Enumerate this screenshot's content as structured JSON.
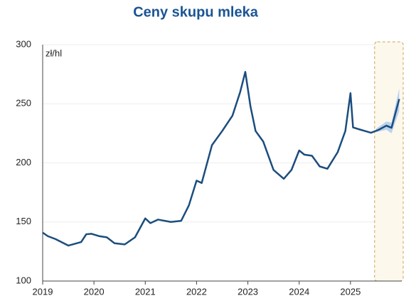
{
  "chart_data": {
    "type": "line",
    "title": "Ceny skupu mleka",
    "ylabel": "zł/hl",
    "x": [
      2019.0,
      2019.1,
      2019.25,
      2019.5,
      2019.75,
      2019.85,
      2019.95,
      2020.1,
      2020.25,
      2020.4,
      2020.6,
      2020.8,
      2021.0,
      2021.1,
      2021.25,
      2021.5,
      2021.7,
      2021.85,
      2022.0,
      2022.1,
      2022.3,
      2022.5,
      2022.7,
      2022.85,
      2022.95,
      2023.05,
      2023.15,
      2023.3,
      2023.5,
      2023.7,
      2023.85,
      2024.0,
      2024.1,
      2024.25,
      2024.4,
      2024.55,
      2024.75,
      2024.9,
      2025.0,
      2025.05,
      2025.2,
      2025.4,
      2025.55,
      2025.7,
      2025.8,
      2025.95
    ],
    "values": [
      141,
      138,
      135.5,
      130,
      133,
      139.6,
      140,
      138,
      137,
      132,
      131,
      137,
      153,
      149,
      152,
      150,
      151,
      164,
      185,
      183,
      215,
      227,
      240,
      260,
      277,
      248,
      227,
      218,
      194,
      186.5,
      194,
      210.5,
      207,
      206,
      197,
      195,
      209,
      227,
      259,
      230,
      228,
      225.5,
      228,
      231.5,
      229.7,
      254
    ],
    "color": "#1b4d7e",
    "band_x": [
      2025.5,
      2025.7,
      2025.8,
      2025.95
    ],
    "band_lower": [
      226,
      228,
      225,
      244
    ],
    "band_upper": [
      229,
      235,
      234,
      263
    ],
    "band_color": "#a9c8ef",
    "forecast_region": [
      2025.47,
      2026
    ],
    "xlim": [
      2019,
      2026
    ],
    "xticks": [
      2019,
      2020,
      2021,
      2022,
      2023,
      2024,
      2025
    ],
    "ylim": [
      100,
      300
    ],
    "yticks": [
      100,
      150,
      200,
      250,
      300
    ],
    "grid": true
  }
}
